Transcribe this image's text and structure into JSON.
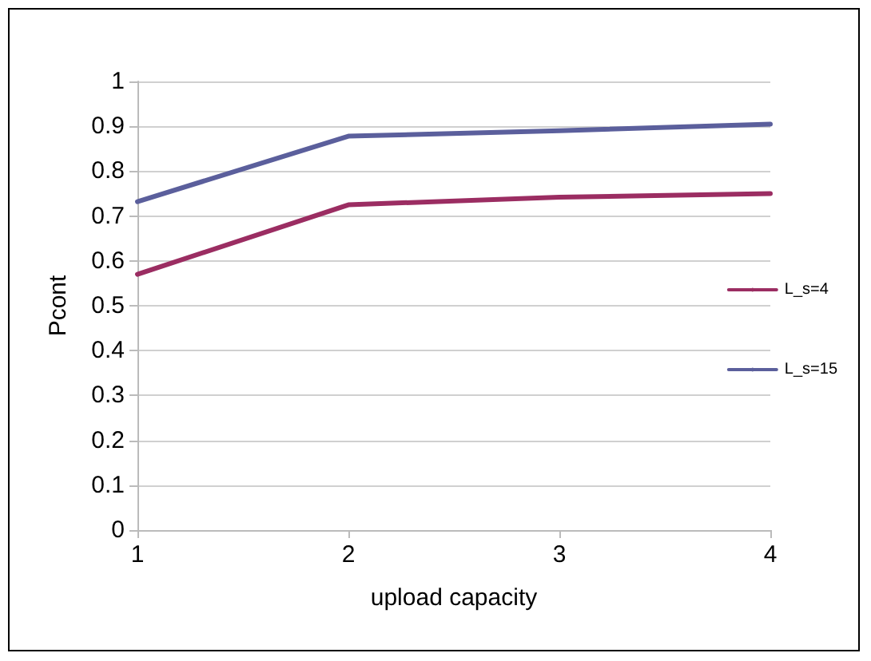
{
  "chart_data": {
    "type": "line",
    "xlabel": "upload capacity",
    "ylabel": "Pcont",
    "x": [
      1,
      2,
      3,
      4
    ],
    "series": [
      {
        "name": "L_s=4",
        "color": "#9b2d62",
        "values": [
          0.57,
          0.725,
          0.742,
          0.75
        ]
      },
      {
        "name": "L_s=15",
        "color": "#5b5f9c",
        "values": [
          0.732,
          0.878,
          0.89,
          0.905
        ]
      }
    ],
    "xlim": [
      1,
      4
    ],
    "xticks": [
      1,
      2,
      3,
      4
    ],
    "ylim": [
      0,
      1
    ],
    "yticks": [
      0,
      0.1,
      0.2,
      0.3,
      0.4,
      0.5,
      0.6,
      0.7,
      0.8,
      0.9,
      1
    ],
    "grid": "y",
    "legend": "right",
    "marker": "none",
    "line_style": "solid"
  }
}
